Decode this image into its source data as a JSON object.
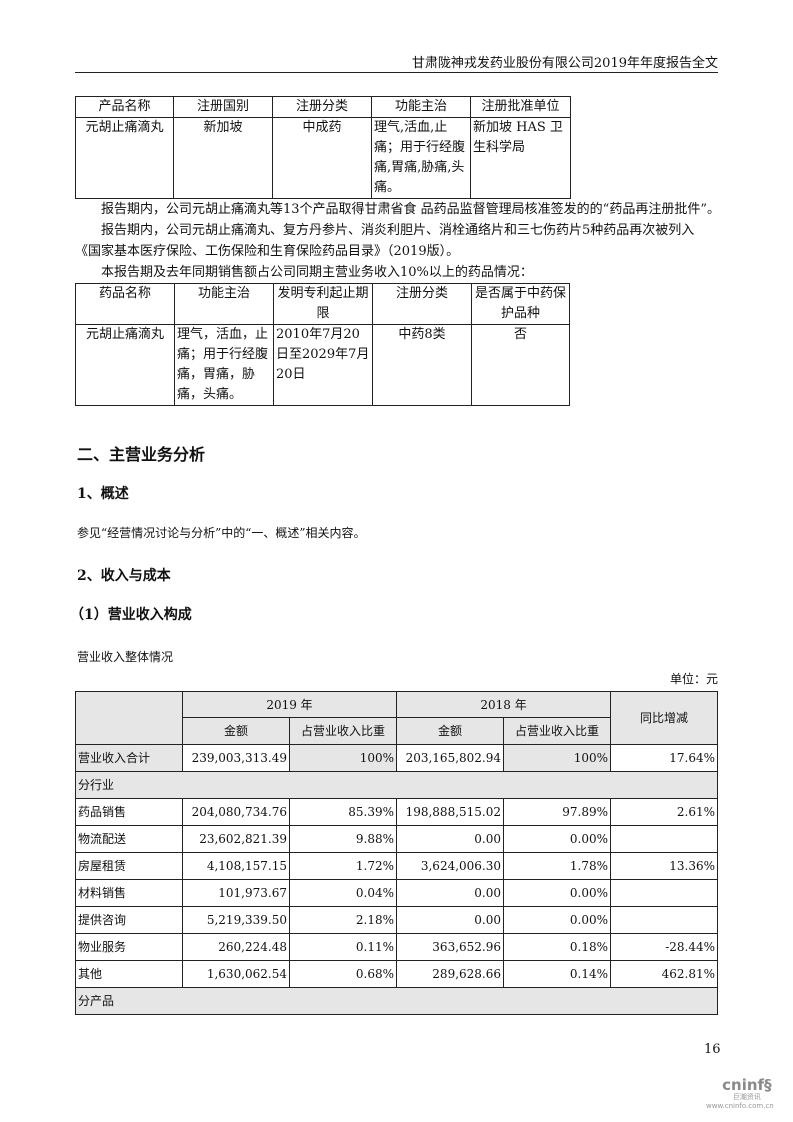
{
  "header": {
    "title": "甘肃陇神戎发药业股份有限公司2019年年度报告全文"
  },
  "table1": {
    "headers": [
      "产品名称",
      "注册国别",
      "注册分类",
      "功能主治",
      "注册批准单位"
    ],
    "row": [
      "元胡止痛滴丸",
      "新加坡",
      "中成药",
      "理气,活血,止痛；用于行经腹痛,胃痛,胁痛,头痛。",
      "新加坡 HAS 卫生科学局"
    ]
  },
  "paragraphs": [
    "报告期内，公司元胡止痛滴丸等13个产品取得甘肃省食 品药品监督管理局核准签发的的“药品再注册批件”。",
    "报告期内，公司元胡止痛滴丸、复方丹参片、消炎利胆片、消栓通络片和三七伤药片5种药品再次被列入《国家基本医疗保险、工伤保险和生育保险药品目录》（2019版）。",
    "本报告期及去年同期销售额占公司同期主营业务收入10%以上的药品情况："
  ],
  "table2": {
    "headers": [
      "药品名称",
      "功能主治",
      "发明专利起止期限",
      "注册分类",
      "是否属于中药保护品种"
    ],
    "row": [
      "元胡止痛滴丸",
      "理气，活血，止痛；用于行经腹痛，胃痛，胁痛，头痛。",
      "2010年7月20日至2029年7月20日",
      "中药8类",
      "否"
    ]
  },
  "section": {
    "title": "二、主营业务分析",
    "sub1": "1、概述",
    "overview_text": "参见“经营情况讨论与分析”中的“一、概述”相关内容。",
    "sub2": "2、收入与成本",
    "sub3": "（1）营业收入构成",
    "table_caption": "营业收入整体情况",
    "unit": "单位：元"
  },
  "table3": {
    "year1": "2019 年",
    "year2": "2018 年",
    "amount": "金额",
    "ratio": "占营业收入比重",
    "change": "同比增减",
    "total": [
      "营业收入合计",
      "239,003,313.49",
      "100%",
      "203,165,802.94",
      "100%",
      "17.64%"
    ],
    "group1": "分行业",
    "rows": [
      [
        "药品销售",
        "204,080,734.76",
        "85.39%",
        "198,888,515.02",
        "97.89%",
        "2.61%"
      ],
      [
        "物流配送",
        "23,602,821.39",
        "9.88%",
        "0.00",
        "0.00%",
        ""
      ],
      [
        "房屋租赁",
        "4,108,157.15",
        "1.72%",
        "3,624,006.30",
        "1.78%",
        "13.36%"
      ],
      [
        "材料销售",
        "101,973.67",
        "0.04%",
        "0.00",
        "0.00%",
        ""
      ],
      [
        "提供咨询",
        "5,219,339.50",
        "2.18%",
        "0.00",
        "0.00%",
        ""
      ],
      [
        "物业服务",
        "260,224.48",
        "0.11%",
        "363,652.96",
        "0.18%",
        "-28.44%"
      ],
      [
        "其他",
        "1,630,062.54",
        "0.68%",
        "289,628.66",
        "0.14%",
        "462.81%"
      ]
    ],
    "group2": "分产品"
  },
  "page_number": "16",
  "logo": {
    "brand": "cninf",
    "cn": "巨潮资讯",
    "url": "www.cninfo.com.cn"
  }
}
